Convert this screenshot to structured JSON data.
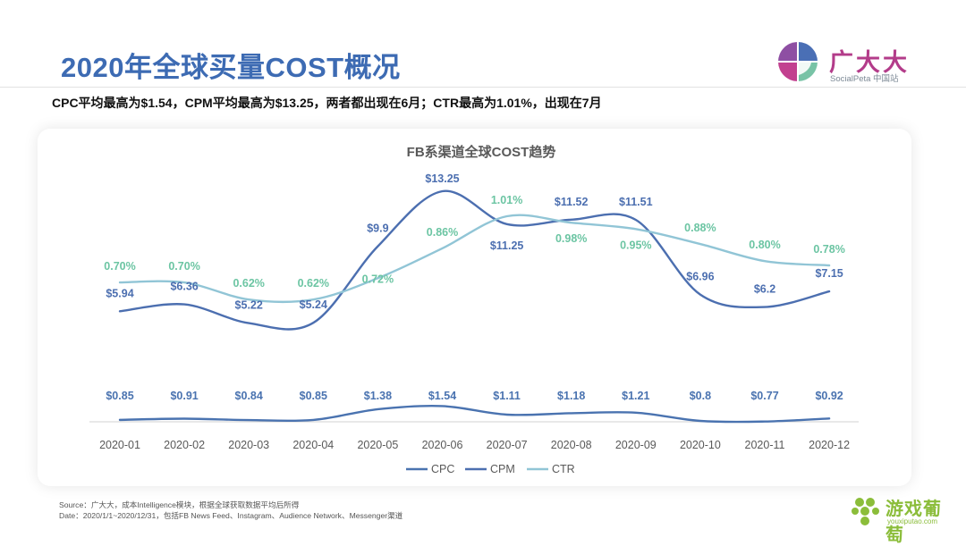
{
  "page": {
    "title": "2020年全球买量COST概况",
    "subtitle": "CPC平均最高为$1.54，CPM平均最高为$13.25，两者都出现在6月；CTR最高为1.01%，出现在7月"
  },
  "brand": {
    "name": "广大大",
    "sub": "SocialPeta 中国站"
  },
  "footer": {
    "source": "Source：广大大，成本Intelligence模块，根据全球获取数据平均后所得",
    "date": "Date：2020/1/1~2020/12/31，包括FB News Feed、Instagram、Audience Network、Messenger渠道"
  },
  "watermark": {
    "name": "游戏葡萄",
    "url": "youxiputao.com"
  },
  "colors": {
    "title": "#3d6bb3",
    "cpc": "#4a73b0",
    "cpm": "#4c6fb0",
    "ctr": "#91c5d6",
    "ctr_label": "#6cc5a3"
  },
  "chart_data": {
    "type": "line",
    "title": "FB系渠道全球COST趋势",
    "categories": [
      "2020-01",
      "2020-02",
      "2020-03",
      "2020-04",
      "2020-05",
      "2020-06",
      "2020-07",
      "2020-08",
      "2020-09",
      "2020-10",
      "2020-11",
      "2020-12"
    ],
    "series": [
      {
        "name": "CPC",
        "unit": "$",
        "values": [
          0.85,
          0.91,
          0.84,
          0.85,
          1.38,
          1.54,
          1.11,
          1.18,
          1.21,
          0.8,
          0.77,
          0.92
        ],
        "labels": [
          "$0.85",
          "$0.91",
          "$0.84",
          "$0.85",
          "$1.38",
          "$1.54",
          "$1.11",
          "$1.18",
          "$1.21",
          "$0.8",
          "$0.77",
          "$0.92"
        ]
      },
      {
        "name": "CPM",
        "unit": "$",
        "values": [
          5.94,
          6.36,
          5.22,
          5.24,
          9.9,
          13.25,
          11.25,
          11.52,
          11.51,
          6.96,
          6.2,
          7.15
        ],
        "labels": [
          "$5.94",
          "$6.36",
          "$5.22",
          "$5.24",
          "$9.9",
          "$13.25",
          "$11.25",
          "$11.52",
          "$11.51",
          "$6.96",
          "$6.2",
          "$7.15"
        ]
      },
      {
        "name": "CTR",
        "unit": "%",
        "values": [
          0.7,
          0.7,
          0.62,
          0.62,
          0.72,
          0.86,
          1.01,
          0.98,
          0.95,
          0.88,
          0.8,
          0.78
        ],
        "labels": [
          "0.70%",
          "0.70%",
          "0.62%",
          "0.62%",
          "0.72%",
          "0.86%",
          "1.01%",
          "0.98%",
          "0.95%",
          "0.88%",
          "0.80%",
          "0.78%"
        ]
      }
    ],
    "legend": [
      "CPC",
      "CPM",
      "CTR"
    ],
    "legend_position": "bottom-center",
    "grid": false
  }
}
